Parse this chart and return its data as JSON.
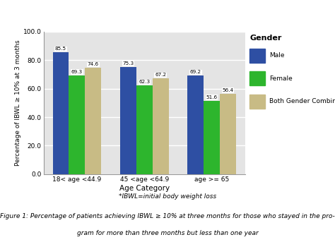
{
  "categories": [
    "18< age <44.9",
    "45 <age <64.9",
    "age >= 65"
  ],
  "series_labels": [
    "Male",
    "Female",
    "Both Gender Combined"
  ],
  "series_values": {
    "Male": [
      85.5,
      75.3,
      69.2
    ],
    "Female": [
      69.3,
      62.3,
      51.6
    ],
    "Both Gender Combined": [
      74.6,
      67.2,
      56.4
    ]
  },
  "colors": {
    "Male": "#2e4fa3",
    "Female": "#2db52d",
    "Both Gender Combined": "#c8bb85"
  },
  "ylabel": "Percentage of IBWL ≥ 10% at 3 months",
  "xlabel": "Age Category",
  "legend_title": "Gender",
  "ylim": [
    0,
    100
  ],
  "yticks": [
    0.0,
    20.0,
    40.0,
    60.0,
    80.0,
    100.0
  ],
  "plot_bg_color": "#e4e4e4",
  "fig_bg_color": "#ffffff",
  "bar_width": 0.24,
  "footnote1": "*IBWL=initial body weight loss",
  "footnote2": "Figure 1: Percentage of patients achieving IBWL ≥ 10% at three months for those who stayed in the pro-",
  "footnote3": "gram for more than three months but less than one year"
}
